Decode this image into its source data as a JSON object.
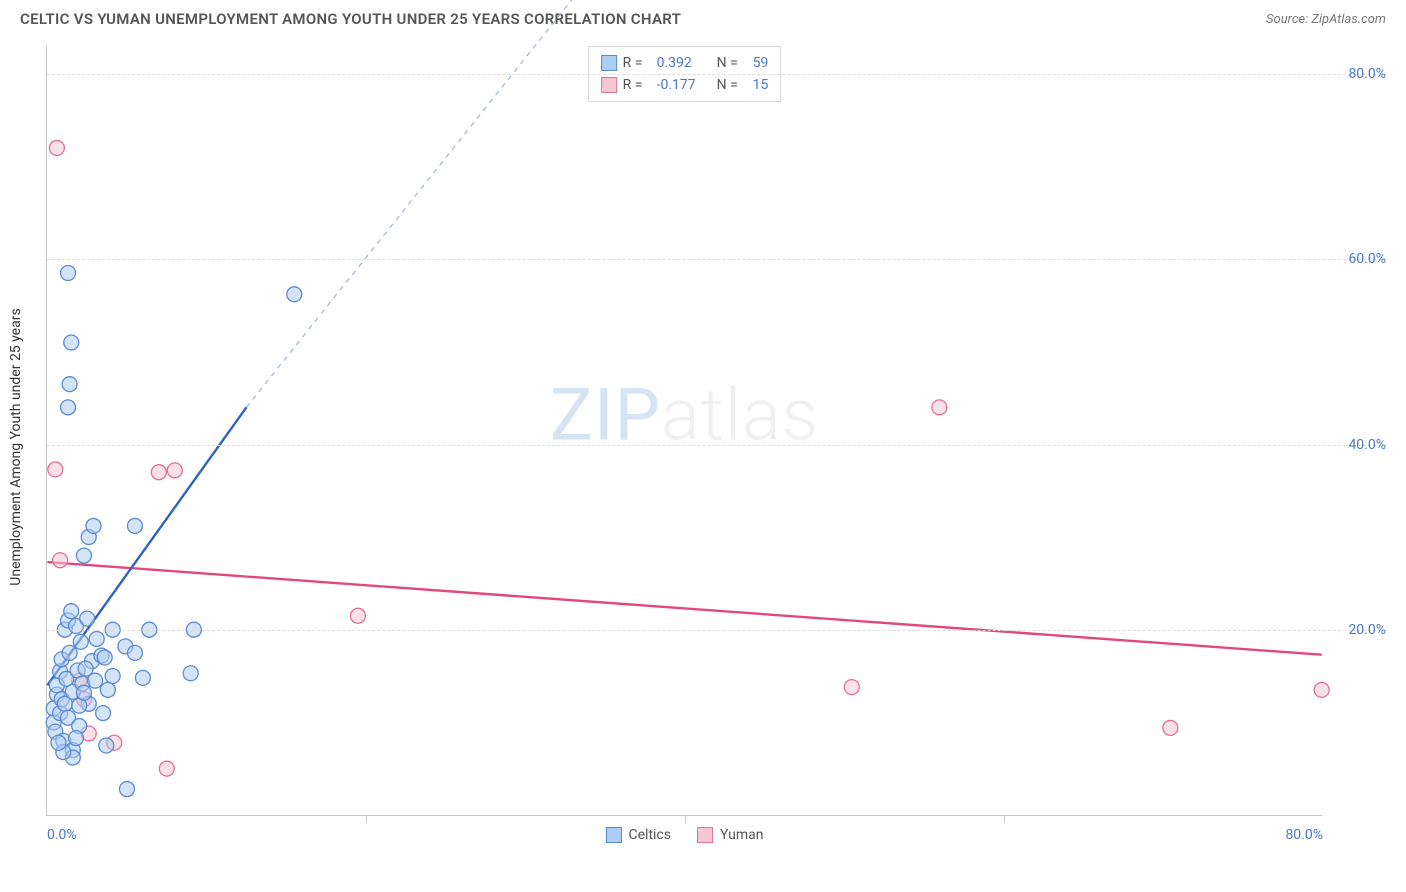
{
  "title": "CELTIC VS YUMAN UNEMPLOYMENT AMONG YOUTH UNDER 25 YEARS CORRELATION CHART",
  "source": "Source: ZipAtlas.com",
  "ylabel": "Unemployment Among Youth under 25 years",
  "watermark_zip": "ZIP",
  "watermark_atlas": "atlas",
  "chart": {
    "type": "scatter",
    "xlim": [
      0,
      80
    ],
    "ylim": [
      0,
      83
    ],
    "x_axis_labels": [
      {
        "v": 0,
        "t": "0.0%"
      },
      {
        "v": 80,
        "t": "80.0%"
      }
    ],
    "x_ticks": [
      20,
      40,
      60
    ],
    "y_grid": [
      {
        "v": 20,
        "t": "20.0%"
      },
      {
        "v": 40,
        "t": "40.0%"
      },
      {
        "v": 60,
        "t": "60.0%"
      },
      {
        "v": 80,
        "t": "80.0%"
      }
    ],
    "grid_color": "#dcdcdc",
    "axis_color": "#c9c9c9",
    "tick_label_color": "#4b79c4",
    "marker_radius": 7.5,
    "series": {
      "celtics": {
        "label": "Celtics",
        "fill": "#aecdf2",
        "stroke": "#5b8bd0",
        "fill_opacity": 0.55,
        "R": "0.392",
        "N": "59",
        "trend": {
          "x1": 0,
          "y1": 14,
          "x2": 12.5,
          "y2": 44,
          "ext_x2": 38.5,
          "ext_y2": 100,
          "color": "#2f63c0",
          "dash_color": "#9bb3dd"
        },
        "points": [
          [
            0.4,
            10
          ],
          [
            0.4,
            11.5
          ],
          [
            0.5,
            9
          ],
          [
            0.6,
            13
          ],
          [
            0.6,
            14
          ],
          [
            0.8,
            11
          ],
          [
            0.8,
            15.5
          ],
          [
            0.9,
            12.5
          ],
          [
            0.9,
            16.8
          ],
          [
            1.0,
            8
          ],
          [
            1.1,
            12
          ],
          [
            1.1,
            20
          ],
          [
            1.2,
            14.7
          ],
          [
            1.3,
            21
          ],
          [
            1.3,
            10.5
          ],
          [
            1.4,
            17.5
          ],
          [
            1.5,
            22
          ],
          [
            1.6,
            13.3
          ],
          [
            1.6,
            7
          ],
          [
            1.8,
            20.4
          ],
          [
            1.9,
            15.6
          ],
          [
            2.0,
            9.6
          ],
          [
            2.1,
            18.7
          ],
          [
            2.2,
            14.2
          ],
          [
            2.3,
            28
          ],
          [
            2.5,
            21.2
          ],
          [
            2.6,
            12
          ],
          [
            2.6,
            30
          ],
          [
            2.8,
            16.6
          ],
          [
            2.9,
            31.2
          ],
          [
            3.1,
            19
          ],
          [
            3.4,
            17.2
          ],
          [
            3.5,
            11
          ],
          [
            3.6,
            17
          ],
          [
            3.7,
            7.5
          ],
          [
            4.1,
            20
          ],
          [
            4.1,
            15
          ],
          [
            4.9,
            18.2
          ],
          [
            5.0,
            2.8
          ],
          [
            5.5,
            17.5
          ],
          [
            5.5,
            31.2
          ],
          [
            6.0,
            14.8
          ],
          [
            6.4,
            20
          ],
          [
            9.0,
            15.3
          ],
          [
            9.2,
            20
          ],
          [
            1.3,
            44
          ],
          [
            1.4,
            46.5
          ],
          [
            1.5,
            51
          ],
          [
            1.3,
            58.5
          ],
          [
            15.5,
            56.2
          ],
          [
            1.6,
            6.2
          ],
          [
            1.0,
            6.8
          ],
          [
            1.8,
            8.3
          ],
          [
            0.7,
            7.8
          ],
          [
            2.0,
            11.8
          ],
          [
            2.3,
            13.2
          ],
          [
            2.4,
            15.8
          ],
          [
            3.0,
            14.5
          ],
          [
            3.8,
            13.5
          ]
        ]
      },
      "yuman": {
        "label": "Yuman",
        "fill": "#f6c6d3",
        "stroke": "#e27099",
        "fill_opacity": 0.55,
        "R": "-0.177",
        "N": "15",
        "trend": {
          "x1": 0,
          "y1": 27.3,
          "x2": 80,
          "y2": 17.3,
          "color": "#e04880"
        },
        "points": [
          [
            0.6,
            72
          ],
          [
            0.5,
            37.3
          ],
          [
            0.8,
            27.5
          ],
          [
            2.0,
            14.5
          ],
          [
            2.3,
            12.5
          ],
          [
            2.6,
            8.8
          ],
          [
            4.2,
            7.8
          ],
          [
            7.0,
            37
          ],
          [
            8.0,
            37.2
          ],
          [
            7.5,
            5.0
          ],
          [
            19.5,
            21.5
          ],
          [
            50.5,
            13.8
          ],
          [
            56.0,
            44
          ],
          [
            70.5,
            9.4
          ],
          [
            80.0,
            13.5
          ]
        ]
      }
    }
  },
  "legend_box": {
    "rows": [
      {
        "square_fill": "#aecdf2",
        "square_stroke": "#5b8bd0",
        "R_label": "R  =",
        "R_val": "0.392",
        "N_label": "N  =",
        "N_val": "59"
      },
      {
        "square_fill": "#f6c6d3",
        "square_stroke": "#e27099",
        "R_label": "R  =",
        "R_val": "-0.177",
        "N_label": "N  =",
        "N_val": "15"
      }
    ]
  },
  "bottom_legend": [
    {
      "fill": "#aecdf2",
      "stroke": "#5b8bd0",
      "label": "Celtics"
    },
    {
      "fill": "#f6c6d3",
      "stroke": "#e27099",
      "label": "Yuman"
    }
  ]
}
